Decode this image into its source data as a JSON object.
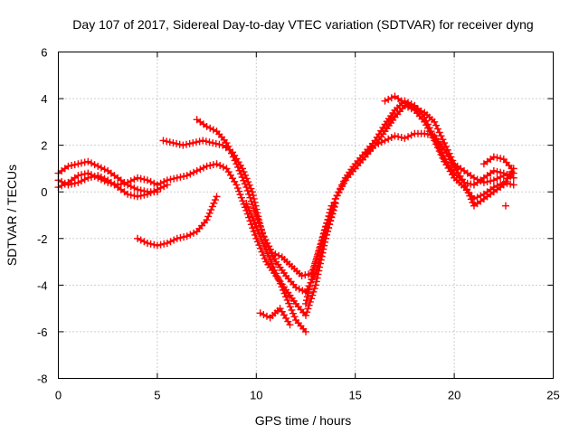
{
  "chart_data": {
    "type": "scatter",
    "title": "Day 107 of 2017, Sidereal Day-to-day VTEC variation (SDTVAR) for receiver dyng",
    "xlabel": "GPS time / hours",
    "ylabel": "SDTVAR / TECUs",
    "xlim": [
      0,
      25
    ],
    "ylim": [
      -8,
      6
    ],
    "xticks": [
      0,
      5,
      10,
      15,
      20,
      25
    ],
    "yticks": [
      -8,
      -6,
      -4,
      -2,
      0,
      2,
      4,
      6
    ],
    "xtick_labels": [
      "0",
      "5",
      "10",
      "15",
      "20",
      "25"
    ],
    "ytick_labels": [
      "-8",
      "-6",
      "-4",
      "-2",
      "0",
      "2",
      "4",
      "6"
    ],
    "grid": true,
    "marker": "+",
    "color": "#ff0000",
    "series": [
      {
        "x": [
          0,
          0.5,
          1,
          1.5,
          2,
          2.5,
          3,
          3.5,
          4,
          4.5,
          5
        ],
        "y": [
          0.8,
          1.1,
          1.2,
          1.3,
          1.1,
          0.9,
          0.6,
          0.3,
          0.1,
          0.0,
          0.0
        ]
      },
      {
        "x": [
          0,
          0.5,
          1,
          1.5,
          2,
          2.5,
          3,
          3.5,
          4,
          4.5,
          5,
          5.5
        ],
        "y": [
          0.5,
          0.3,
          0.4,
          0.6,
          0.7,
          0.5,
          0.2,
          -0.1,
          -0.2,
          -0.1,
          0.1,
          0.3
        ]
      },
      {
        "x": [
          0,
          0.5,
          1,
          1.5,
          2,
          2.5,
          3,
          3.5,
          4,
          4.5,
          5
        ],
        "y": [
          0.2,
          0.4,
          0.7,
          0.8,
          0.6,
          0.4,
          0.3,
          0.4,
          0.6,
          0.5,
          0.3
        ]
      },
      {
        "x": [
          5,
          5.5,
          6,
          6.5,
          7,
          7.5,
          8,
          8.5,
          9,
          9.5,
          10,
          10.5,
          11,
          11.5,
          12,
          12.5,
          13,
          13.5,
          14
        ],
        "y": [
          0.3,
          0.5,
          0.6,
          0.7,
          0.9,
          1.1,
          1.2,
          1.0,
          0.3,
          -0.8,
          -2.0,
          -3.0,
          -3.6,
          -4.2,
          -4.8,
          -5.3,
          -4.0,
          -2.0,
          -0.5
        ]
      },
      {
        "x": [
          5.3,
          5.8,
          6.3,
          6.8,
          7.3,
          7.8,
          8.3,
          8.8,
          9.3,
          9.8,
          10.3,
          10.8,
          11.3,
          11.8,
          12.3,
          12.8,
          13.3,
          13.8
        ],
        "y": [
          2.2,
          2.1,
          2.0,
          2.1,
          2.2,
          2.1,
          2.0,
          1.7,
          1.0,
          0.0,
          -1.8,
          -2.6,
          -2.8,
          -3.2,
          -3.6,
          -3.5,
          -2.2,
          -0.6
        ]
      },
      {
        "x": [
          7,
          7.5,
          8,
          8.5,
          9,
          9.5,
          10,
          10.5,
          11,
          11.5,
          12,
          12.5,
          13,
          13.5,
          14,
          14.5,
          15,
          15.5,
          16,
          16.5,
          17,
          17.5,
          18,
          18.5,
          19,
          19.5,
          20,
          20.5,
          21,
          21.5,
          22,
          22.5,
          23
        ],
        "y": [
          3.1,
          2.8,
          2.6,
          2.1,
          1.2,
          0.2,
          -1.0,
          -2.2,
          -3.0,
          -3.6,
          -4.1,
          -4.3,
          -3.5,
          -2.0,
          -0.3,
          0.6,
          1.2,
          1.7,
          2.2,
          2.9,
          3.5,
          3.9,
          3.7,
          3.2,
          2.3,
          1.4,
          0.8,
          0.4,
          0.3,
          0.6,
          0.9,
          0.8,
          0.6
        ]
      },
      {
        "x": [
          9.5,
          10,
          10.5,
          11,
          11.5,
          12,
          12.5
        ],
        "y": [
          -0.5,
          -1.5,
          -2.5,
          -3.5,
          -4.5,
          -5.5,
          -6.0
        ]
      },
      {
        "x": [
          10.2,
          10.7,
          11.2,
          11.7
        ],
        "y": [
          -5.2,
          -5.4,
          -5.0,
          -5.7
        ]
      },
      {
        "x": [
          4,
          4.5,
          5,
          5.5,
          6,
          6.5,
          7,
          7.5,
          8
        ],
        "y": [
          -2.0,
          -2.2,
          -2.3,
          -2.2,
          -2.0,
          -1.9,
          -1.7,
          -1.2,
          -0.2
        ]
      },
      {
        "x": [
          12.5,
          13,
          13.5,
          14,
          14.5,
          15,
          15.5,
          16,
          16.5,
          17,
          17.5,
          18,
          18.5,
          19,
          19.5,
          20,
          20.5,
          21,
          21.5,
          22,
          22.5,
          23
        ],
        "y": [
          -4.8,
          -3.0,
          -1.5,
          -0.3,
          0.5,
          1.0,
          1.5,
          2.0,
          2.6,
          3.2,
          3.7,
          3.5,
          3.0,
          2.2,
          1.3,
          0.6,
          0.2,
          -0.3,
          -0.1,
          0.2,
          0.4,
          0.3
        ]
      },
      {
        "x": [
          15.5,
          16,
          16.5,
          17,
          17.5,
          18,
          18.5,
          19,
          19.5,
          20,
          20.5,
          21,
          21.5,
          22,
          22.5,
          23
        ],
        "y": [
          1.6,
          2.0,
          2.2,
          2.4,
          2.3,
          2.5,
          2.5,
          2.4,
          1.8,
          1.1,
          0.4,
          -0.6,
          -0.3,
          0.0,
          0.3,
          1.0
        ]
      },
      {
        "x": [
          16.5,
          17,
          17.5,
          18,
          18.5,
          19,
          19.5,
          20,
          20.5,
          21,
          21.5,
          22,
          22.5,
          23
        ],
        "y": [
          3.9,
          4.1,
          3.8,
          3.6,
          3.4,
          3.0,
          2.1,
          1.2,
          0.9,
          0.6,
          0.4,
          0.5,
          0.7,
          0.8
        ]
      },
      {
        "x": [
          21.5,
          22,
          22.5,
          22.9
        ],
        "y": [
          1.2,
          1.5,
          1.4,
          1.0
        ]
      },
      {
        "x": [
          22.6
        ],
        "y": [
          -0.6
        ]
      }
    ]
  }
}
